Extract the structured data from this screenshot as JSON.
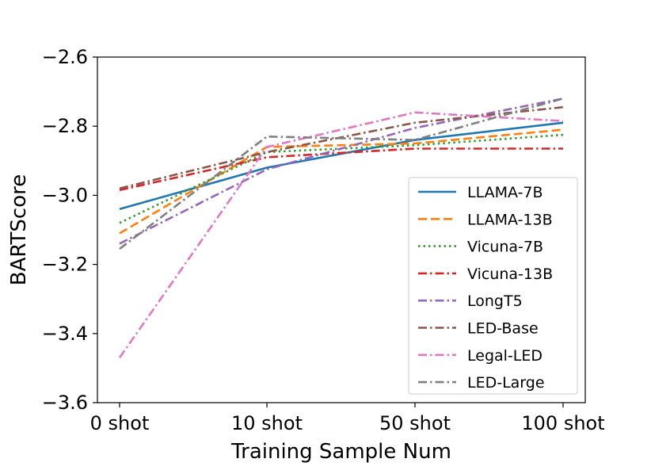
{
  "chart_data": {
    "type": "line",
    "title": "",
    "xlabel": "Training Sample Num",
    "ylabel": "BARTScore",
    "categories": [
      "0 shot",
      "10 shot",
      "50 shot",
      "100 shot"
    ],
    "ylim": [
      -3.6,
      -2.6
    ],
    "yticks": [
      -2.6,
      -2.8,
      -3.0,
      -3.2,
      -3.4,
      -3.6
    ],
    "ytick_labels": [
      "−2.6",
      "−2.8",
      "−3.0",
      "−3.2",
      "−3.4",
      "−3.6"
    ],
    "grid": false,
    "legend_position": "lower-right",
    "series": [
      {
        "name": "LLAMA-7B",
        "values": [
          -3.04,
          -2.92,
          -2.84,
          -2.79
        ],
        "color": "#1f77b4",
        "style": "solid"
      },
      {
        "name": "LLAMA-13B",
        "values": [
          -3.11,
          -2.86,
          -2.85,
          -2.81
        ],
        "color": "#ff7f0e",
        "style": "dashed"
      },
      {
        "name": "Vicuna-7B",
        "values": [
          -3.08,
          -2.875,
          -2.855,
          -2.825
        ],
        "color": "#2ca02c",
        "style": "dotted"
      },
      {
        "name": "Vicuna-13B",
        "values": [
          -2.985,
          -2.89,
          -2.865,
          -2.865
        ],
        "color": "#d62728",
        "style": "dashdot"
      },
      {
        "name": "LongT5",
        "values": [
          -3.14,
          -2.925,
          -2.805,
          -2.72
        ],
        "color": "#9467bd",
        "style": "dashdot"
      },
      {
        "name": "LED-Base",
        "values": [
          -2.98,
          -2.875,
          -2.79,
          -2.745
        ],
        "color": "#8c564b",
        "style": "dashdot"
      },
      {
        "name": "Legal-LED",
        "values": [
          -3.47,
          -2.86,
          -2.76,
          -2.785
        ],
        "color": "#e377c2",
        "style": "dashdot"
      },
      {
        "name": "LED-Large",
        "values": [
          -3.155,
          -2.83,
          -2.84,
          -2.72
        ],
        "color": "#7f7f7f",
        "style": "dashdot"
      }
    ]
  }
}
